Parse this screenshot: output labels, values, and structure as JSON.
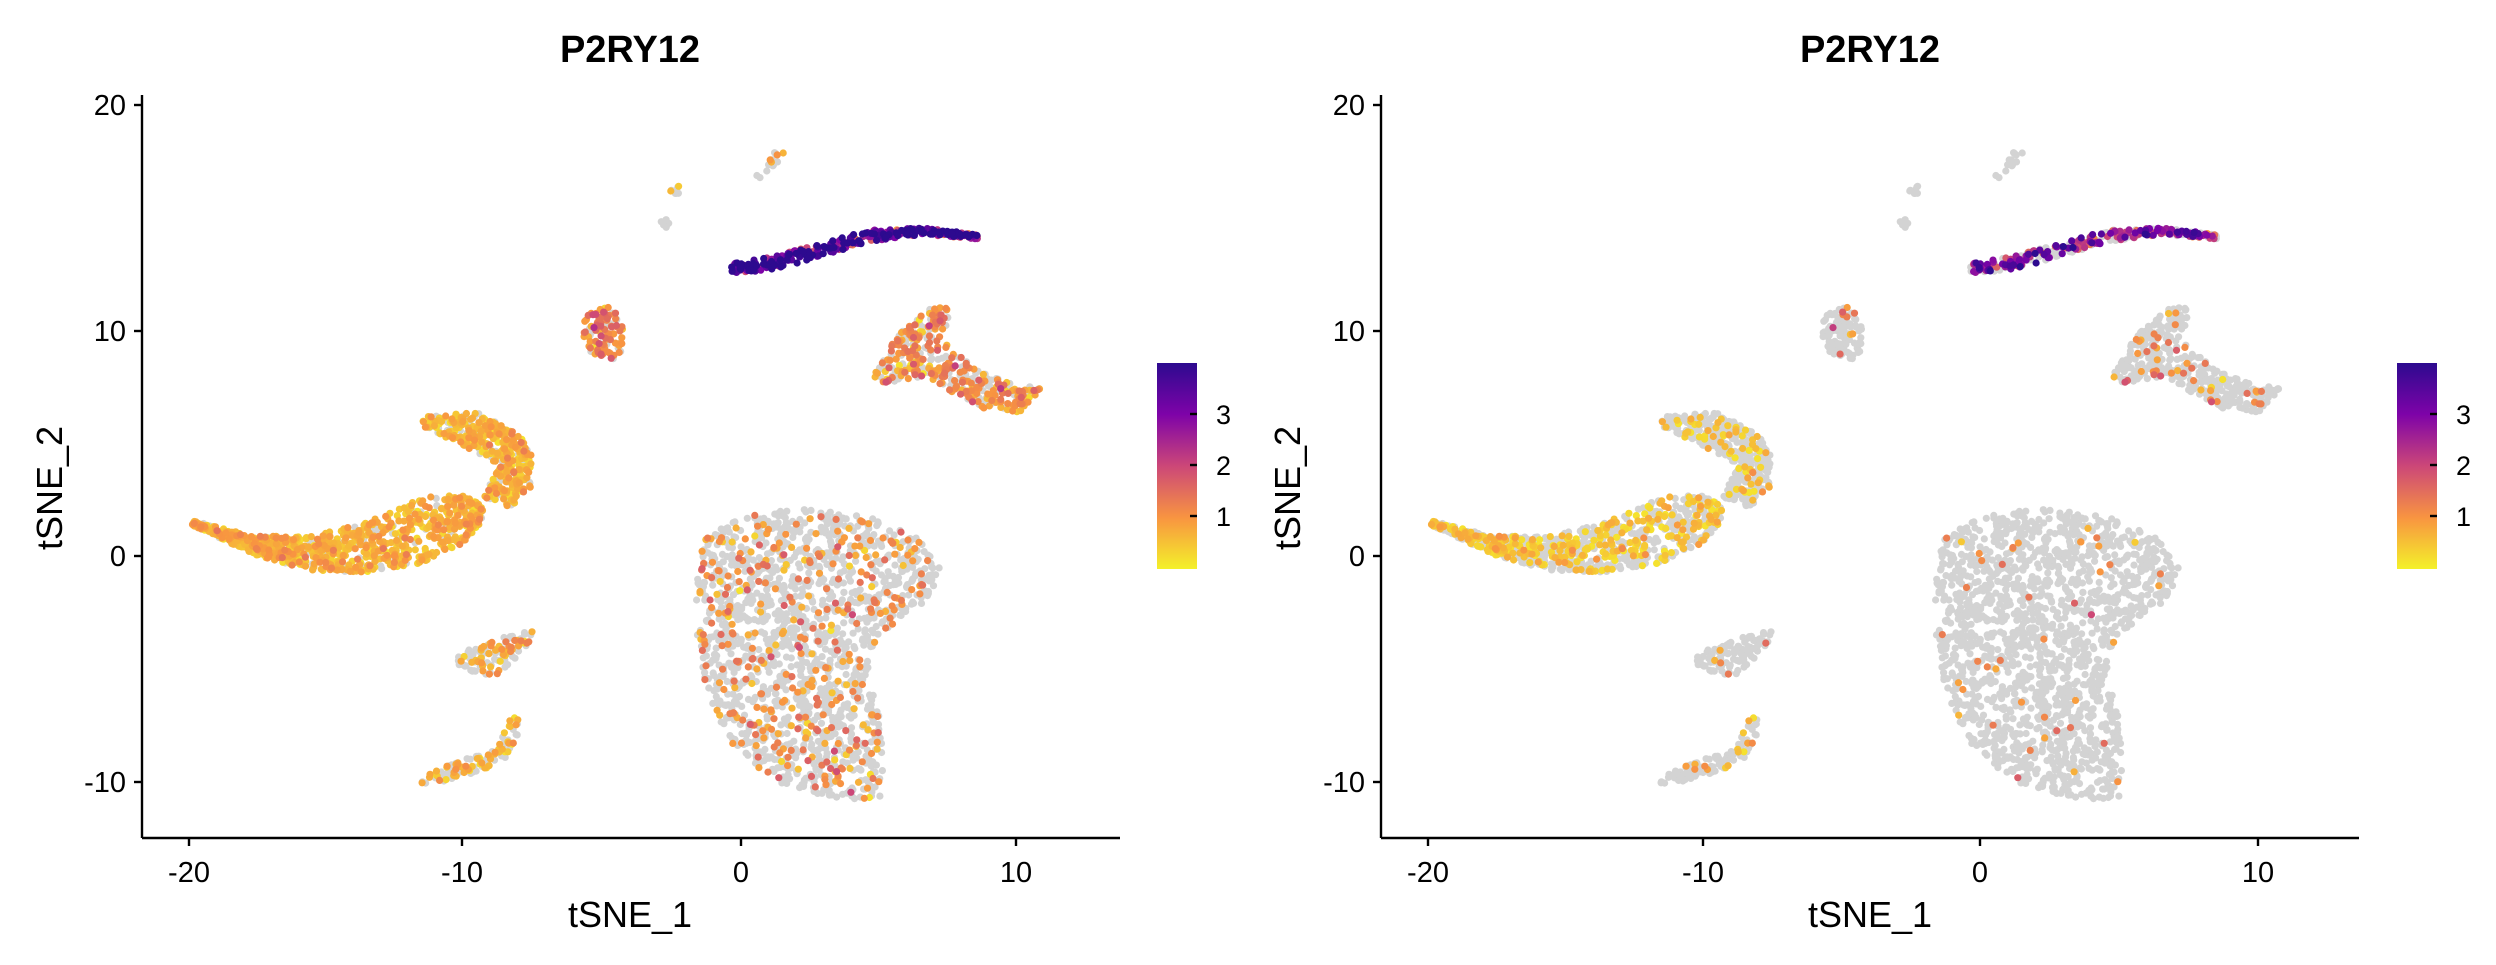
{
  "chart_data": [
    {
      "type": "scatter",
      "title": "P2RY12",
      "xlabel": "tSNE_1",
      "ylabel": "tSNE_2",
      "xlim": [
        -21,
        14
      ],
      "ylim": [
        -12.5,
        20.5
      ],
      "xticks": [
        -20,
        -10,
        0,
        10
      ],
      "yticks": [
        -10,
        0,
        10,
        20
      ],
      "xtick_labels": [
        "-20",
        "-10",
        "0",
        "10"
      ],
      "ytick_labels": [
        "-10",
        "0",
        "10",
        "20"
      ],
      "grid": false,
      "legend": {
        "placement": "right",
        "type": "colorbar",
        "range": [
          0,
          3.8
        ],
        "ticks": [
          1,
          2,
          3
        ],
        "tick_labels": [
          "1",
          "2",
          "3"
        ],
        "colors": [
          "#f4f12a",
          "#f89441",
          "#cc4778",
          "#7e03a8",
          "#2d0a8f"
        ]
      },
      "background_color": "#d3d3d3",
      "clusters": [
        {
          "region": "left crescent",
          "expression_fraction": 0.85,
          "mean_expression": 0.6
        },
        {
          "region": "left upper lobe",
          "expression_fraction": 0.7,
          "mean_expression": 0.55
        },
        {
          "region": "top thin arc",
          "expression_fraction": 1.0,
          "mean_expression": 3.2
        },
        {
          "region": "small island near (-4.5, 10)",
          "expression_fraction": 0.8,
          "mean_expression": 1.1
        },
        {
          "region": "right wedge near (7, 9)",
          "expression_fraction": 0.6,
          "mean_expression": 1.0
        },
        {
          "region": "large lower-right cluster",
          "expression_fraction": 0.2,
          "mean_expression": 1.0
        },
        {
          "region": "small lower island near (-8, -4)",
          "expression_fraction": 0.4,
          "mean_expression": 0.8
        },
        {
          "region": "bottom sliver near (-9, -9)",
          "expression_fraction": 0.5,
          "mean_expression": 0.6
        }
      ]
    },
    {
      "type": "scatter",
      "title": "P2RY12",
      "xlabel": "tSNE_1",
      "ylabel": "tSNE_2",
      "xlim": [
        -21,
        14
      ],
      "ylim": [
        -12.5,
        20.5
      ],
      "xticks": [
        -20,
        -10,
        0,
        10
      ],
      "yticks": [
        -10,
        0,
        10,
        20
      ],
      "xtick_labels": [
        "-20",
        "-10",
        "0",
        "10"
      ],
      "ytick_labels": [
        "-10",
        "0",
        "10",
        "20"
      ],
      "grid": false,
      "legend": {
        "placement": "right",
        "type": "colorbar",
        "range": [
          0,
          3.8
        ],
        "ticks": [
          1,
          2,
          3
        ],
        "tick_labels": [
          "1",
          "2",
          "3"
        ],
        "colors": [
          "#f4f12a",
          "#f89441",
          "#cc4778",
          "#7e03a8",
          "#2d0a8f"
        ]
      },
      "background_color": "#d3d3d3",
      "clusters": [
        {
          "region": "left crescent",
          "expression_fraction": 0.35,
          "mean_expression": 0.4
        },
        {
          "region": "left upper lobe",
          "expression_fraction": 0.15,
          "mean_expression": 0.4
        },
        {
          "region": "top thin arc",
          "expression_fraction": 0.6,
          "mean_expression": 2.5
        },
        {
          "region": "small island near (-4.5, 10)",
          "expression_fraction": 0.1,
          "mean_expression": 1.0
        },
        {
          "region": "right wedge near (7, 9)",
          "expression_fraction": 0.12,
          "mean_expression": 1.0
        },
        {
          "region": "large lower-right cluster",
          "expression_fraction": 0.03,
          "mean_expression": 1.0
        },
        {
          "region": "small lower island near (-8, -4)",
          "expression_fraction": 0.05,
          "mean_expression": 1.0
        },
        {
          "region": "bottom sliver near (-9, -9)",
          "expression_fraction": 0.1,
          "mean_expression": 0.6
        }
      ]
    }
  ]
}
